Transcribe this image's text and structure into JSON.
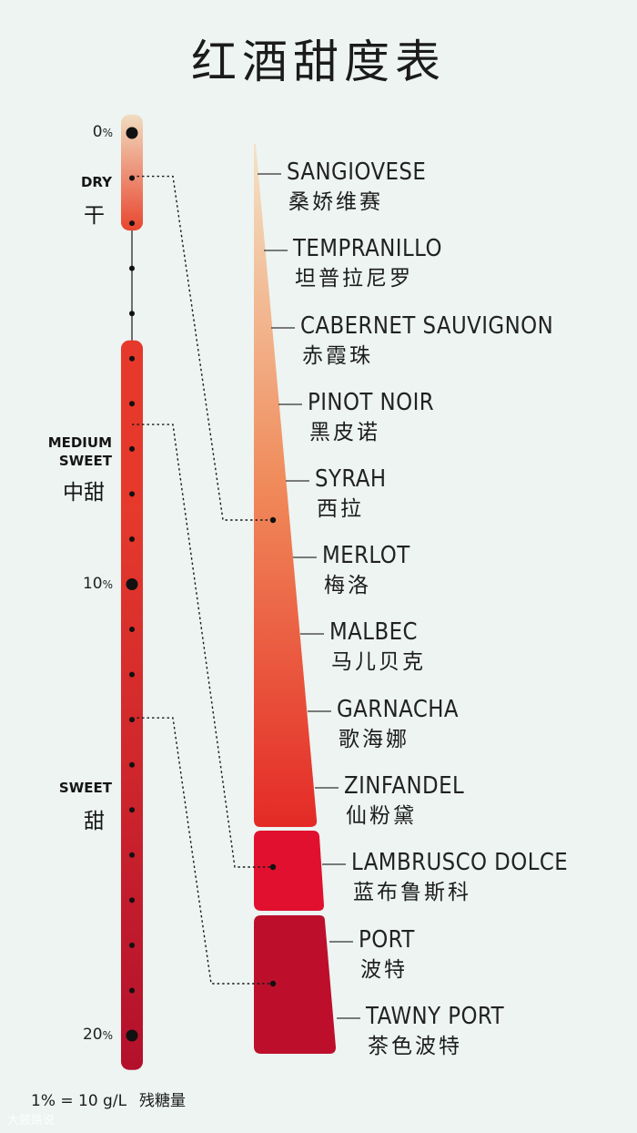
{
  "title": "红酒甜度表",
  "footer": {
    "scale": "1% = 10 g/L",
    "label": "残糖量"
  },
  "watermark": "大鼓路说",
  "chart_data": {
    "type": "scale",
    "axis_ticks": [
      {
        "label": "0",
        "unit": "%",
        "value": 0
      },
      {
        "label": "10",
        "unit": "%",
        "value": 10
      },
      {
        "label": "20",
        "unit": "%",
        "value": 20
      }
    ],
    "categories": [
      {
        "en": "DRY",
        "zh": "干",
        "range": [
          0,
          2
        ]
      },
      {
        "en": "MEDIUM\nSWEET",
        "zh": "中甜",
        "range": [
          5,
          8.6
        ]
      },
      {
        "en": "SWEET",
        "zh": "甜",
        "range": [
          8.6,
          20.6
        ]
      }
    ],
    "wines": [
      {
        "en": "SANGIOVESE",
        "zh": "桑娇维赛"
      },
      {
        "en": "TEMPRANILLO",
        "zh": "坦普拉尼罗"
      },
      {
        "en": "CABERNET SAUVIGNON",
        "zh": "赤霞珠"
      },
      {
        "en": "PINOT NOIR",
        "zh": "黑皮诺"
      },
      {
        "en": "SYRAH",
        "zh": "西拉"
      },
      {
        "en": "MERLOT",
        "zh": "梅洛"
      },
      {
        "en": "MALBEC",
        "zh": "马儿贝克"
      },
      {
        "en": "GARNACHA",
        "zh": "歌海娜"
      },
      {
        "en": "ZINFANDEL",
        "zh": "仙粉黛"
      },
      {
        "en": "LAMBRUSCO DOLCE",
        "zh": "蓝布鲁斯科"
      },
      {
        "en": "PORT",
        "zh": "波特"
      },
      {
        "en": "TAWNY PORT",
        "zh": "茶色波特"
      }
    ],
    "groups": [
      {
        "category": "DRY",
        "wines": [
          "SANGIOVESE",
          "TEMPRANILLO",
          "CABERNET SAUVIGNON",
          "PINOT NOIR",
          "SYRAH",
          "MERLOT",
          "MALBEC",
          "GARNACHA",
          "ZINFANDEL"
        ]
      },
      {
        "category": "MEDIUM SWEET",
        "wines": [
          "LAMBRUSCO DOLCE"
        ]
      },
      {
        "category": "SWEET",
        "wines": [
          "PORT",
          "TAWNY PORT"
        ]
      }
    ],
    "colors": {
      "background": "#edf4f2",
      "dry_top": "#f1dcc0",
      "dry_bottom": "#e8462e",
      "medium": "#e6382b",
      "sweet_top": "#e63a2c",
      "sweet_bottom": "#b3102c",
      "wedge_top": "#f4e3c6",
      "wedge_mid": "#f08a5a",
      "wedge_bottom": "#e42a26",
      "lambrusco": "#e0102e",
      "port": "#bd0f2b"
    }
  }
}
